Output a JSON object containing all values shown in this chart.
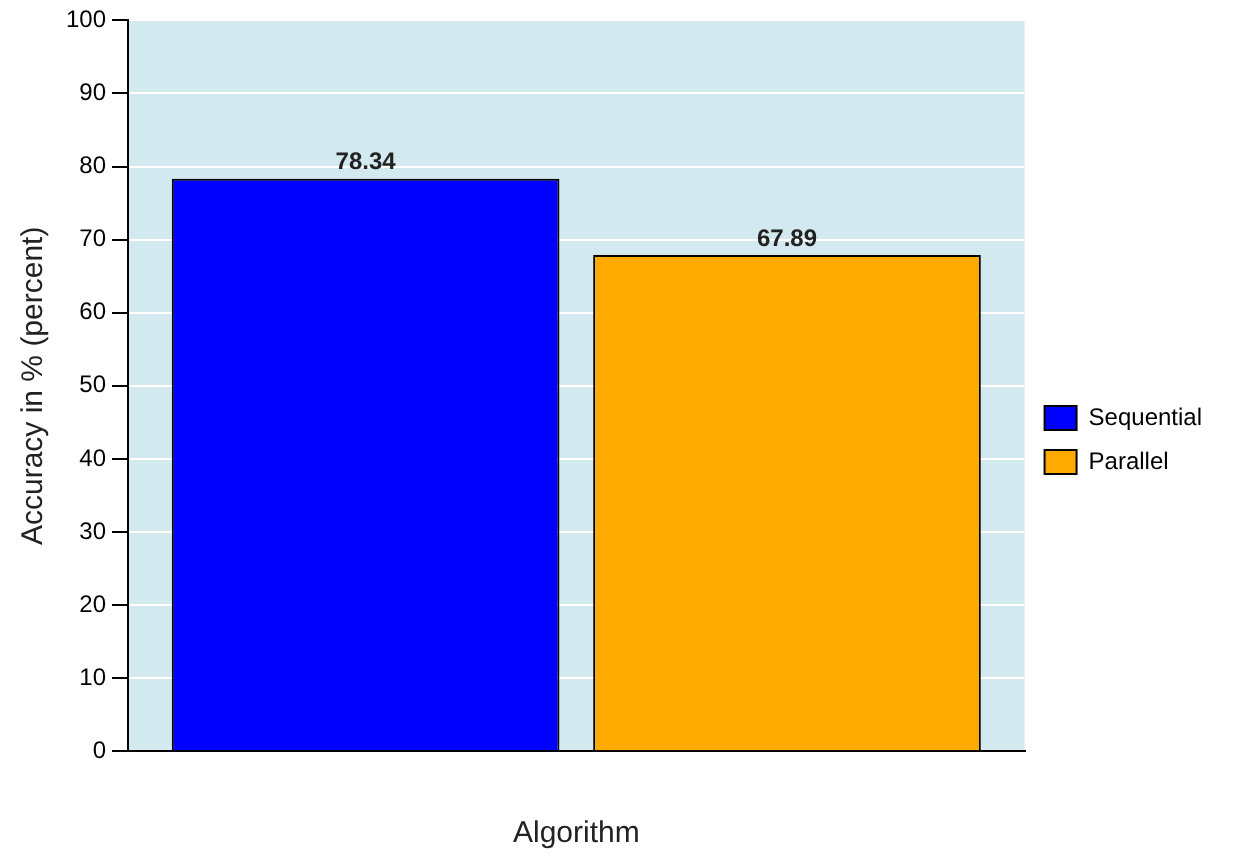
{
  "chart_data": {
    "type": "bar",
    "xlabel": "Algorithm",
    "ylabel": "Accuracy in % (percent)",
    "categories": [
      null
    ],
    "series": [
      {
        "name": "Sequential",
        "color": "#0000ff",
        "values": [
          78.34
        ]
      },
      {
        "name": "Parallel",
        "color": "#ffaa00",
        "values": [
          67.89
        ]
      }
    ],
    "ylim": [
      0,
      100
    ],
    "yticks": [
      0,
      10,
      20,
      30,
      40,
      50,
      60,
      70,
      80,
      90,
      100
    ],
    "grid": "y",
    "legend": "right",
    "data_labels": true
  }
}
